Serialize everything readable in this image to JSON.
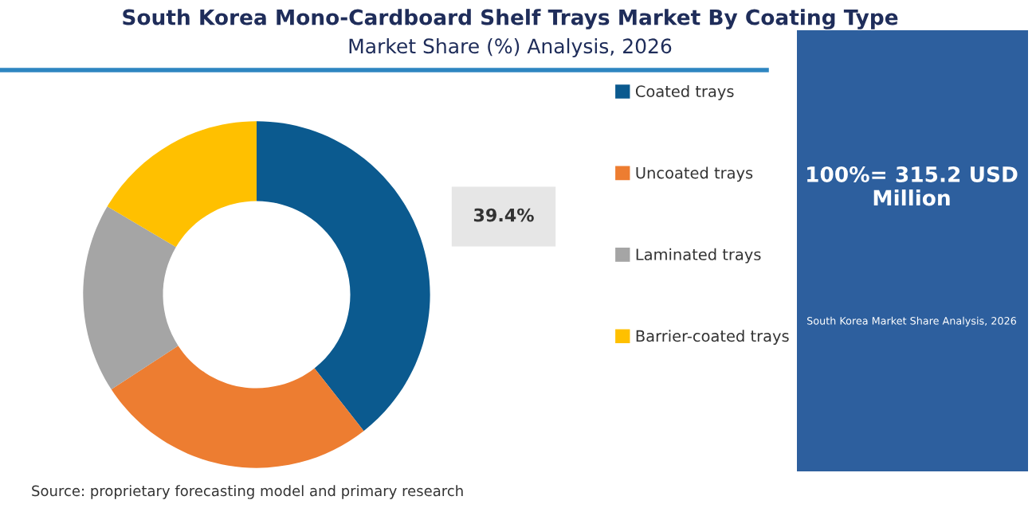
{
  "chart_data": {
    "type": "donut",
    "title": "South Korea Mono-Cardboard Shelf Trays Market By Coating Type",
    "subtitle": "Market Share (%) Analysis, 2026",
    "categories": [
      "Coated trays",
      "Uncoated trays",
      "Laminated trays",
      "Barrier-coated trays"
    ],
    "values": [
      39.4,
      26.4,
      17.7,
      16.5
    ],
    "colors": [
      "#0b5a8f",
      "#ed7d31",
      "#a5a5a5",
      "#ffc000"
    ],
    "value_labels": [
      "39.4%",
      null,
      null,
      null
    ],
    "legend": "right",
    "annotations": [
      "Source: proprietary forecasting model and primary research",
      "100%= 315.2 USD Million",
      "South Korea Market Share Analysis, 2026"
    ]
  }
}
